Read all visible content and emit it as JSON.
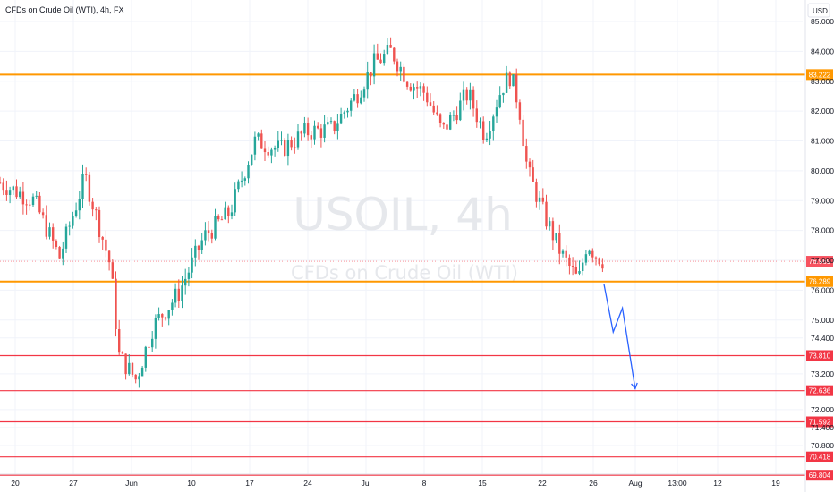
{
  "header": {
    "title": "CFDs on Crude Oil (WTI), 4h, FX",
    "currency": "USD"
  },
  "watermark": {
    "symbol": "USOIL, 4h",
    "description": "CFDs on Crude Oil (WTI)"
  },
  "chart_data": {
    "type": "candlestick",
    "y_axis": {
      "range": [
        69.6,
        85.3
      ],
      "ticks": [
        85.0,
        84.0,
        83.0,
        82.0,
        81.0,
        80.0,
        79.0,
        78.0,
        77.0,
        76.0,
        75.0,
        74.4,
        73.2,
        72.0,
        71.4,
        70.8
      ],
      "tick_labels": [
        "85.000",
        "84.000",
        "83.000",
        "82.000",
        "81.000",
        "80.000",
        "79.000",
        "78.000",
        "77.000",
        "76.000",
        "75.000",
        "74.400",
        "73.200",
        "72.000",
        "71.400",
        "70.800"
      ]
    },
    "x_axis": {
      "labels": [
        "20",
        "27",
        "Jun",
        "10",
        "17",
        "24",
        "Jul",
        "8",
        "15",
        "22",
        "26",
        "Aug",
        "13:00",
        "12",
        "19"
      ]
    },
    "up_color": "#26a69a",
    "down_color": "#ef5350",
    "last_price": {
      "value": 76.969,
      "label": "76.969"
    },
    "horizontal_levels": [
      {
        "value": 83.222,
        "label": "83.222",
        "color": "#ff9800"
      },
      {
        "value": 76.289,
        "label": "76.289",
        "color": "#ff9800"
      },
      {
        "value": 73.81,
        "label": "73.810",
        "color": "#f23645"
      },
      {
        "value": 72.636,
        "label": "72.636",
        "color": "#f23645"
      },
      {
        "value": 71.592,
        "label": "71.592",
        "color": "#f23645"
      },
      {
        "value": 70.418,
        "label": "70.418",
        "color": "#f23645"
      },
      {
        "value": 69.804,
        "label": "69.804",
        "color": "#f23645"
      }
    ],
    "projection_path": {
      "color": "#2962ff",
      "points": [
        [
          1722211200,
          76.2
        ],
        [
          1722304800,
          74.6
        ],
        [
          1722398400,
          75.4
        ],
        [
          1722528000,
          72.7
        ]
      ]
    },
    "key_prices": [
      {
        "t": 1716076800,
        "price": 79.6
      },
      {
        "t": 1716422400,
        "price": 79.0
      },
      {
        "t": 1716681600,
        "price": 77.1
      },
      {
        "t": 1716940800,
        "price": 79.8
      },
      {
        "t": 1717200000,
        "price": 76.8
      },
      {
        "t": 1717286400,
        "price": 73.8
      },
      {
        "t": 1717459200,
        "price": 73.0
      },
      {
        "t": 1717632000,
        "price": 74.8
      },
      {
        "t": 1717891200,
        "price": 75.9
      },
      {
        "t": 1718150400,
        "price": 77.8
      },
      {
        "t": 1718409600,
        "price": 78.6
      },
      {
        "t": 1718668800,
        "price": 81.0
      },
      {
        "t": 1718928000,
        "price": 80.7
      },
      {
        "t": 1719187200,
        "price": 81.3
      },
      {
        "t": 1719446400,
        "price": 81.4
      },
      {
        "t": 1719705600,
        "price": 82.6
      },
      {
        "t": 1719878400,
        "price": 83.6
      },
      {
        "t": 1720051200,
        "price": 84.0
      },
      {
        "t": 1720224000,
        "price": 83.0
      },
      {
        "t": 1720396800,
        "price": 82.6
      },
      {
        "t": 1720569600,
        "price": 81.3
      },
      {
        "t": 1720828800,
        "price": 82.6
      },
      {
        "t": 1721001600,
        "price": 81.2
      },
      {
        "t": 1721174400,
        "price": 82.8
      },
      {
        "t": 1721260800,
        "price": 83.2
      },
      {
        "t": 1721347200,
        "price": 82.2
      },
      {
        "t": 1721433600,
        "price": 80.0
      },
      {
        "t": 1721606400,
        "price": 78.5
      },
      {
        "t": 1721779200,
        "price": 77.2
      },
      {
        "t": 1721952000,
        "price": 76.3
      },
      {
        "t": 1722038400,
        "price": 77.6
      },
      {
        "t": 1722124800,
        "price": 77.2
      },
      {
        "t": 1722211200,
        "price": 76.97
      }
    ]
  }
}
